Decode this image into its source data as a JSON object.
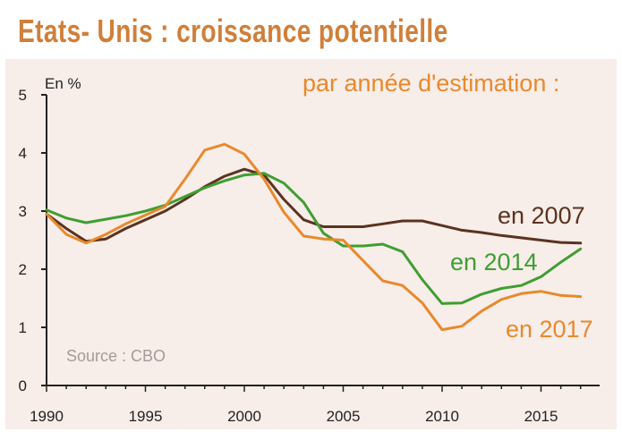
{
  "title": "Etats- Unis : croissance potentielle",
  "chart_data": {
    "type": "line",
    "title": "Etats- Unis : croissance potentielle",
    "subtitle": "par année d'estimation :",
    "ylabel": "En %",
    "source": "Source : CBO",
    "xlim": [
      1990,
      2017
    ],
    "ylim": [
      0,
      5
    ],
    "x_ticks": [
      1990,
      1995,
      2000,
      2005,
      2010,
      2015
    ],
    "y_ticks": [
      0,
      1,
      2,
      3,
      4,
      5
    ],
    "grid": false,
    "legend": "inline labels",
    "series": [
      {
        "name": "en 2007",
        "color": "#5a3320",
        "x": [
          1990,
          1991,
          1992,
          1993,
          1994,
          1995,
          1996,
          1997,
          1998,
          1999,
          2000,
          2001,
          2002,
          2003,
          2004,
          2005,
          2006,
          2007,
          2008,
          2009,
          2010,
          2011,
          2012,
          2013,
          2014,
          2015,
          2016,
          2017
        ],
        "values": [
          2.95,
          2.7,
          2.48,
          2.52,
          2.7,
          2.85,
          3.0,
          3.2,
          3.42,
          3.6,
          3.72,
          3.62,
          3.2,
          2.85,
          2.73,
          2.73,
          2.73,
          2.78,
          2.83,
          2.83,
          2.75,
          2.67,
          2.63,
          2.58,
          2.54,
          2.5,
          2.46,
          2.45
        ]
      },
      {
        "name": "en 2014",
        "color": "#3f9e32",
        "x": [
          1990,
          1991,
          1992,
          1993,
          1994,
          1995,
          1996,
          1997,
          1998,
          1999,
          2000,
          2001,
          2002,
          2003,
          2004,
          2005,
          2006,
          2007,
          2008,
          2009,
          2010,
          2011,
          2012,
          2013,
          2014,
          2015,
          2016,
          2017
        ],
        "values": [
          3.02,
          2.88,
          2.8,
          2.86,
          2.92,
          3.0,
          3.1,
          3.25,
          3.4,
          3.52,
          3.62,
          3.65,
          3.48,
          3.15,
          2.62,
          2.4,
          2.4,
          2.43,
          2.3,
          1.82,
          1.41,
          1.42,
          1.57,
          1.67,
          1.72,
          1.87,
          2.12,
          2.35
        ]
      },
      {
        "name": "en 2017",
        "color": "#e8892c",
        "x": [
          1990,
          1991,
          1992,
          1993,
          1994,
          1995,
          1996,
          1997,
          1998,
          1999,
          2000,
          2001,
          2002,
          2003,
          2004,
          2005,
          2006,
          2007,
          2008,
          2009,
          2010,
          2011,
          2012,
          2013,
          2014,
          2015,
          2016,
          2017
        ],
        "values": [
          2.95,
          2.6,
          2.45,
          2.6,
          2.78,
          2.93,
          3.08,
          3.55,
          4.05,
          4.15,
          3.98,
          3.55,
          2.98,
          2.57,
          2.52,
          2.5,
          2.15,
          1.8,
          1.72,
          1.42,
          0.96,
          1.02,
          1.28,
          1.48,
          1.58,
          1.62,
          1.55,
          1.53
        ]
      }
    ]
  }
}
